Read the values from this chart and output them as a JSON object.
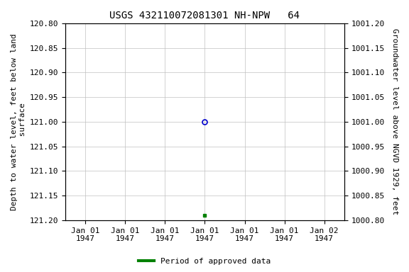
{
  "title": "USGS 432110072081301 NH-NPW   64",
  "ylabel_left": "Depth to water level, feet below land\n surface",
  "ylabel_right": "Groundwater level above NGVD 1929, feet",
  "ylim_left_bottom": 121.2,
  "ylim_left_top": 120.8,
  "ylim_right_bottom": 1000.8,
  "ylim_right_top": 1001.2,
  "y_ticks_left": [
    120.8,
    120.85,
    120.9,
    120.95,
    121.0,
    121.05,
    121.1,
    121.15,
    121.2
  ],
  "y_ticks_right": [
    1000.8,
    1000.85,
    1000.9,
    1000.95,
    1001.0,
    1001.05,
    1001.1,
    1001.15,
    1001.2
  ],
  "x_tick_labels": [
    "Jan 01\n1947",
    "Jan 01\n1947",
    "Jan 01\n1947",
    "Jan 01\n1947",
    "Jan 01\n1947",
    "Jan 01\n1947",
    "Jan 02\n1947"
  ],
  "x_tick_positions": [
    0,
    1,
    2,
    3,
    4,
    5,
    6
  ],
  "xlim": [
    -0.5,
    6.5
  ],
  "data_point_open_x": 3,
  "data_point_open_y": 121.0,
  "data_point_filled_x": 3,
  "data_point_filled_y": 121.19,
  "open_marker_color": "#0000cc",
  "filled_marker_color": "#008000",
  "grid_color": "#c0c0c0",
  "background_color": "#ffffff",
  "legend_label": "Period of approved data",
  "legend_color": "#008000",
  "title_fontsize": 10,
  "axis_label_fontsize": 8,
  "tick_fontsize": 8
}
